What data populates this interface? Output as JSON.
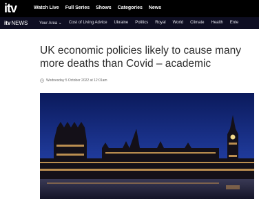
{
  "header": {
    "logo": "itv",
    "nav": [
      "Watch Live",
      "Full Series",
      "Shows",
      "Categories",
      "News"
    ]
  },
  "subnav": {
    "logo": "itv",
    "logo_suffix": "NEWS",
    "items": [
      "Your Area ⌄",
      "Cost of Living Advice",
      "Ukraine",
      "Politics",
      "Royal",
      "World",
      "Climate",
      "Health",
      "Ente"
    ]
  },
  "article": {
    "title": "UK economic policies likely to cause many more deaths than Covid – academic",
    "date": "Wednesday 5 October 2022 at 12:01am"
  }
}
